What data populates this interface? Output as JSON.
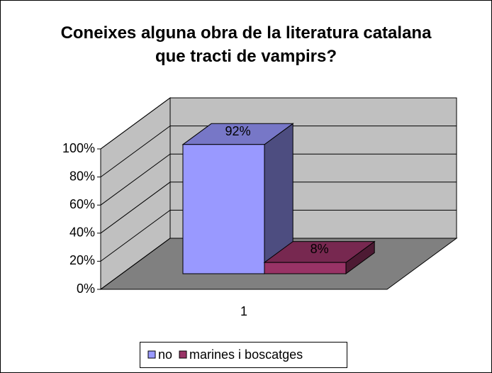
{
  "chart_data": {
    "type": "bar3d",
    "title": "Coneixes alguna obra de la literatura catalana que tracti de vampirs?",
    "categories": [
      "1"
    ],
    "series": [
      {
        "name": "no",
        "color": "#9999ff",
        "values": [
          92
        ],
        "value_labels": [
          "92%"
        ]
      },
      {
        "name": "marines i boscatges",
        "color": "#993366",
        "values": [
          8
        ],
        "value_labels": [
          "8%"
        ]
      }
    ],
    "ylim": [
      0,
      100
    ],
    "yticks": [
      {
        "value": 0,
        "label": "0%"
      },
      {
        "value": 20,
        "label": "20%"
      },
      {
        "value": 40,
        "label": "40%"
      },
      {
        "value": 60,
        "label": "60%"
      },
      {
        "value": 80,
        "label": "80%"
      },
      {
        "value": 100,
        "label": "100%"
      }
    ],
    "grid": true,
    "legend": "bottom"
  }
}
